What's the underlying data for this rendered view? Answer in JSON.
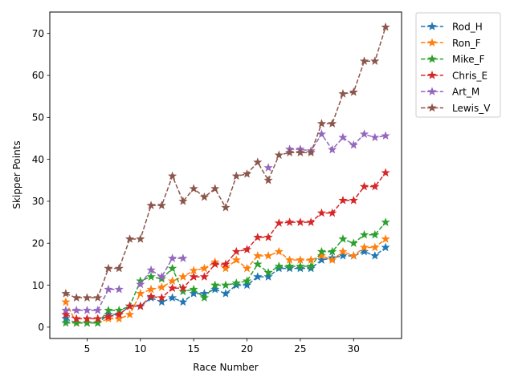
{
  "chart_data": {
    "type": "line",
    "title": "",
    "xlabel": "Race Number",
    "ylabel": "Skipper Points",
    "xlim": [
      1.5,
      34.5
    ],
    "ylim": [
      -2.7,
      75.1
    ],
    "xticks": [
      5,
      10,
      15,
      20,
      25,
      30
    ],
    "yticks": [
      0,
      10,
      20,
      30,
      40,
      50,
      60,
      70
    ],
    "grid": false,
    "legend_position": "outside upper right",
    "marker": "star",
    "linestyle": "dashed",
    "x": [
      3,
      4,
      5,
      6,
      7,
      8,
      9,
      10,
      11,
      12,
      13,
      14,
      15,
      16,
      17,
      18,
      19,
      20,
      21,
      22,
      23,
      24,
      25,
      26,
      27,
      28,
      29,
      30,
      31,
      32,
      33
    ],
    "series": [
      {
        "name": "Rod_H",
        "color": "#1f77b4",
        "values": [
          2,
          1,
          1,
          1,
          3,
          3,
          5,
          5,
          7,
          6,
          7,
          6,
          8,
          8,
          9,
          8,
          10,
          10,
          12,
          12,
          14,
          14,
          14,
          14,
          16,
          16.5,
          17,
          17,
          18,
          17,
          19
        ]
      },
      {
        "name": "Ron_F",
        "color": "#ff7f0e",
        "values": [
          6,
          1,
          1,
          1,
          2,
          2,
          3,
          8,
          9,
          9.5,
          11,
          12,
          13.5,
          14,
          15.5,
          14,
          16,
          14,
          17,
          17,
          18,
          16,
          16,
          16,
          17,
          16,
          18,
          17,
          19,
          19,
          21
        ]
      },
      {
        "name": "Mike_F",
        "color": "#2ca02c",
        "values": [
          1,
          1,
          1,
          1,
          4,
          4,
          5,
          11,
          12,
          11.5,
          14,
          8.5,
          9,
          7,
          10,
          10,
          10.5,
          11,
          15,
          13,
          14.5,
          14.5,
          14.5,
          14.5,
          18,
          18,
          21,
          20,
          22,
          22,
          25
        ]
      },
      {
        "name": "Chris_E",
        "color": "#d62728",
        "values": [
          3,
          2,
          2,
          2,
          2.5,
          3,
          5,
          5,
          7.3,
          7,
          9.3,
          9.3,
          12,
          12,
          15,
          15,
          18,
          18.5,
          21.4,
          21.4,
          24.8,
          25,
          25,
          25,
          27.2,
          27.2,
          30.2,
          30.2,
          33.5,
          33.5,
          36.8
        ]
      },
      {
        "name": "Art_M",
        "color": "#9467bd",
        "values": [
          4,
          4,
          4,
          4,
          9,
          9,
          null,
          10.2,
          13.6,
          12,
          16.4,
          16.4,
          null,
          null,
          null,
          null,
          null,
          null,
          null,
          38,
          null,
          42.4,
          42.4,
          42,
          46,
          42.3,
          45.2,
          43.4,
          46,
          45.2,
          45.6
        ]
      },
      {
        "name": "Lewis_V",
        "color": "#8c564b",
        "values": [
          8,
          7,
          7,
          7,
          14,
          14,
          21,
          21,
          29,
          29,
          36,
          30,
          33,
          31,
          33,
          28.5,
          36,
          36.5,
          39.3,
          35,
          41,
          41.6,
          41.6,
          41.6,
          48.5,
          48.5,
          55.6,
          56,
          63.4,
          63.4,
          71.5
        ]
      }
    ]
  }
}
